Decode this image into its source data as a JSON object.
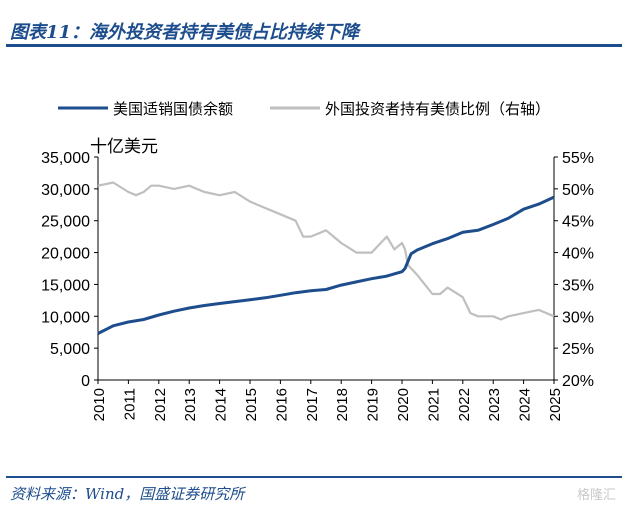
{
  "header": {
    "title": "图表11：海外投资者持有美债占比持续下降"
  },
  "footer": {
    "source": "资料来源：Wind，国盛证券研究所",
    "watermark": "格隆汇"
  },
  "chart_data": {
    "type": "line",
    "unit_label": "十亿美元",
    "x_ticks": [
      "2010",
      "2011",
      "2012",
      "2013",
      "2014",
      "2015",
      "2016",
      "2017",
      "2018",
      "2019",
      "2020",
      "2021",
      "2022",
      "2023",
      "2024",
      "2025"
    ],
    "y_left": {
      "range": [
        0,
        35000
      ],
      "ticks": [
        "0",
        "5,000",
        "10,000",
        "15,000",
        "20,000",
        "25,000",
        "30,000",
        "35,000"
      ]
    },
    "y_right": {
      "range": [
        20,
        55
      ],
      "ticks": [
        "20%",
        "25%",
        "30%",
        "35%",
        "40%",
        "45%",
        "50%",
        "55%"
      ]
    },
    "legend_position": "top",
    "series": [
      {
        "name": "美国适销国债余额",
        "axis": "left",
        "color": "#1d4d8c",
        "x": [
          2010,
          2010.5,
          2011,
          2011.5,
          2012,
          2012.5,
          2013,
          2013.5,
          2014,
          2014.5,
          2015,
          2015.5,
          2016,
          2016.5,
          2017,
          2017.5,
          2018,
          2018.5,
          2019,
          2019.5,
          2020,
          2020.1,
          2020.3,
          2020.5,
          2021,
          2021.5,
          2022,
          2022.5,
          2023,
          2023.5,
          2024,
          2024.5,
          2025
        ],
        "values": [
          7300,
          8500,
          9100,
          9500,
          10200,
          10800,
          11300,
          11700,
          12000,
          12300,
          12600,
          12900,
          13300,
          13700,
          14000,
          14200,
          14900,
          15400,
          15900,
          16300,
          17000,
          17500,
          19800,
          20400,
          21400,
          22200,
          23200,
          23500,
          24400,
          25400,
          26800,
          27600,
          28700
        ]
      },
      {
        "name": "外国投资者持有美债比例（右轴）",
        "axis": "right",
        "color": "#bfbfbf",
        "x": [
          2010,
          2010.5,
          2011,
          2011.25,
          2011.5,
          2011.75,
          2012,
          2012.5,
          2013,
          2013.5,
          2014,
          2014.5,
          2015,
          2015.5,
          2016,
          2016.5,
          2016.75,
          2017,
          2017.5,
          2018,
          2018.5,
          2019,
          2019.5,
          2019.75,
          2020,
          2020.1,
          2020.2,
          2020.5,
          2021,
          2021.25,
          2021.5,
          2022,
          2022.25,
          2022.5,
          2023,
          2023.25,
          2023.5,
          2024,
          2024.5,
          2025
        ],
        "values": [
          50.5,
          51,
          49.5,
          49,
          49.5,
          50.5,
          50.5,
          50,
          50.5,
          49.5,
          49,
          49.5,
          48,
          47,
          46,
          45,
          42.5,
          42.5,
          43.5,
          41.5,
          40,
          40,
          42.5,
          40.5,
          41.5,
          40.5,
          38,
          36.5,
          33.5,
          33.5,
          34.5,
          33,
          30.5,
          30,
          30,
          29.5,
          30,
          30.5,
          31,
          30
        ]
      }
    ]
  }
}
